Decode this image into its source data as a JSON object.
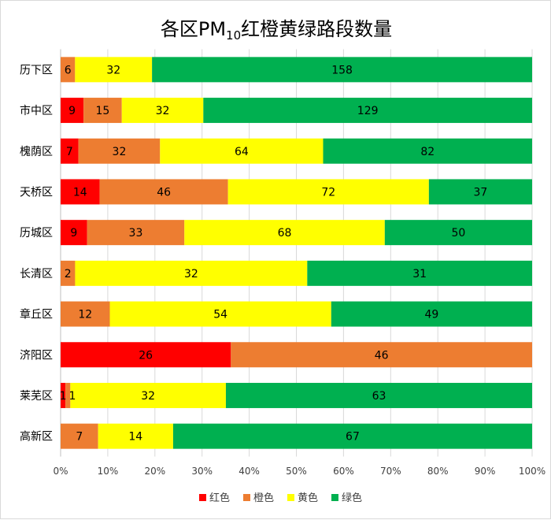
{
  "chart_data": {
    "type": "bar",
    "orientation": "horizontal",
    "stacking": "percent",
    "title_main": "各区PM",
    "title_sub": "10",
    "title_rest": "红橙黄绿路段数量",
    "categories": [
      "历下区",
      "市中区",
      "槐荫区",
      "天桥区",
      "历城区",
      "长清区",
      "章丘区",
      "济阳区",
      "莱芜区",
      "高新区"
    ],
    "series": [
      {
        "name": "红色",
        "color": "#ff0000",
        "values": [
          0,
          9,
          7,
          14,
          9,
          0,
          0,
          26,
          1,
          0
        ]
      },
      {
        "name": "橙色",
        "color": "#ed7d31",
        "values": [
          6,
          15,
          32,
          46,
          33,
          2,
          12,
          46,
          1,
          7
        ]
      },
      {
        "name": "黄色",
        "color": "#ffff00",
        "values": [
          32,
          32,
          64,
          72,
          68,
          32,
          54,
          0,
          32,
          14
        ]
      },
      {
        "name": "绿色",
        "color": "#00b050",
        "values": [
          158,
          129,
          82,
          37,
          50,
          31,
          49,
          0,
          63,
          67
        ]
      }
    ],
    "xticks": [
      "0%",
      "10%",
      "20%",
      "30%",
      "40%",
      "50%",
      "60%",
      "70%",
      "80%",
      "90%",
      "100%"
    ],
    "xlim": [
      0,
      100
    ],
    "grid": true,
    "legend_position": "bottom"
  }
}
